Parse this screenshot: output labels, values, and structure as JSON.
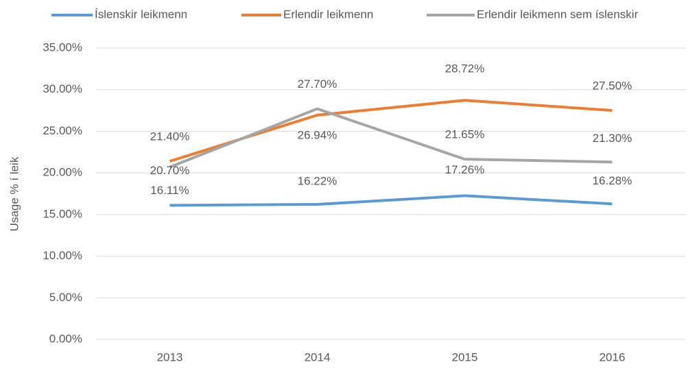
{
  "chart_data": {
    "type": "line",
    "y_label": "Usage % í leik",
    "categories": [
      "2013",
      "2014",
      "2015",
      "2016"
    ],
    "series": [
      {
        "name": "Íslenskir leikmenn",
        "color": "#5b9bd5",
        "values": [
          16.11,
          16.22,
          17.26,
          16.28
        ],
        "value_labels": [
          "16.11%",
          "16.22%",
          "17.26%",
          "16.28%"
        ]
      },
      {
        "name": "Erlendir leikmenn",
        "color": "#ed7d31",
        "values": [
          21.4,
          26.94,
          28.72,
          27.5
        ],
        "value_labels": [
          "21.40%",
          "26.94%",
          "28.72%",
          "27.50%"
        ]
      },
      {
        "name": "Erlendir leikmenn sem íslenskir",
        "color": "#a5a5a5",
        "values": [
          20.7,
          27.7,
          21.65,
          21.3
        ],
        "value_labels": [
          "20.70%",
          "27.70%",
          "21.65%",
          "21.30%"
        ]
      }
    ],
    "ylim": [
      0,
      35
    ],
    "yticks": [
      {
        "value": 0,
        "label": "0.00%"
      },
      {
        "value": 5,
        "label": "5.00%"
      },
      {
        "value": 10,
        "label": "10.00%"
      },
      {
        "value": 15,
        "label": "15.00%"
      },
      {
        "value": 20,
        "label": "20.00%"
      },
      {
        "value": 25,
        "label": "25.00%"
      },
      {
        "value": 30,
        "label": "30.00%"
      },
      {
        "value": 35,
        "label": "35.00%"
      }
    ],
    "grid": true,
    "legend": "top"
  }
}
